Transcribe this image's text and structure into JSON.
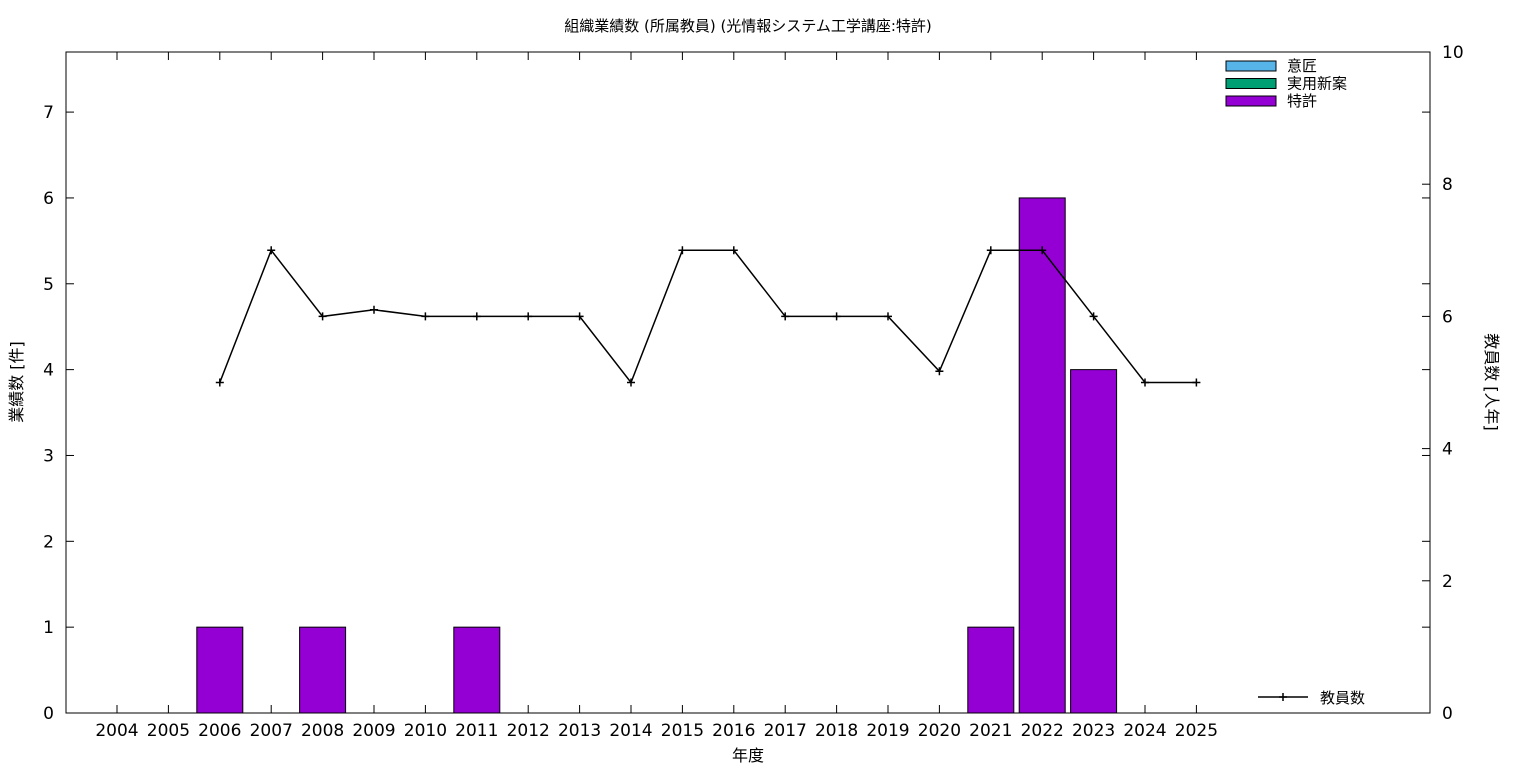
{
  "chart_data": {
    "type": "bar",
    "title": "組織業績数 (所属教員) (光情報システム工学講座:特許)",
    "xlabel": "年度",
    "ylabel": "業績数 [件]",
    "y2label": "教員数 [人年]",
    "categories": [
      "2004",
      "2005",
      "2006",
      "2007",
      "2008",
      "2009",
      "2010",
      "2011",
      "2012",
      "2013",
      "2014",
      "2015",
      "2016",
      "2017",
      "2018",
      "2019",
      "2020",
      "2021",
      "2022",
      "2023",
      "2024",
      "2025"
    ],
    "ylim": [
      0,
      7.7
    ],
    "yticks": [
      0,
      1,
      2,
      3,
      4,
      5,
      6,
      7
    ],
    "y2lim": [
      0,
      10
    ],
    "y2ticks": [
      0,
      2,
      4,
      6,
      8,
      10
    ],
    "series": [
      {
        "name": "意匠",
        "kind": "bar",
        "axis": "left",
        "color": "#56b4e9",
        "values": [
          0,
          0,
          0,
          0,
          0,
          0,
          0,
          0,
          0,
          0,
          0,
          0,
          0,
          0,
          0,
          0,
          0,
          0,
          0,
          0,
          0,
          0
        ]
      },
      {
        "name": "実用新案",
        "kind": "bar",
        "axis": "left",
        "color": "#009e73",
        "values": [
          0,
          0,
          0,
          0,
          0,
          0,
          0,
          0,
          0,
          0,
          0,
          0,
          0,
          0,
          0,
          0,
          0,
          0,
          0,
          0,
          0,
          0
        ]
      },
      {
        "name": "特許",
        "kind": "bar",
        "axis": "left",
        "color": "#9400d3",
        "values": [
          0,
          0,
          1,
          0,
          1,
          0,
          0,
          1,
          0,
          0,
          0,
          0,
          0,
          0,
          0,
          0,
          0,
          1,
          6,
          4,
          0,
          0
        ]
      },
      {
        "name": "教員数",
        "kind": "line",
        "axis": "right",
        "color": "#000000",
        "values": [
          null,
          null,
          5.0,
          7.0,
          6.0,
          6.1,
          6.0,
          6.0,
          6.0,
          6.0,
          5.0,
          7.0,
          7.0,
          6.0,
          6.0,
          6.0,
          5.17,
          7.0,
          7.0,
          6.0,
          5.0,
          5.0
        ]
      }
    ],
    "legend_position": "top-right",
    "grid": false
  }
}
